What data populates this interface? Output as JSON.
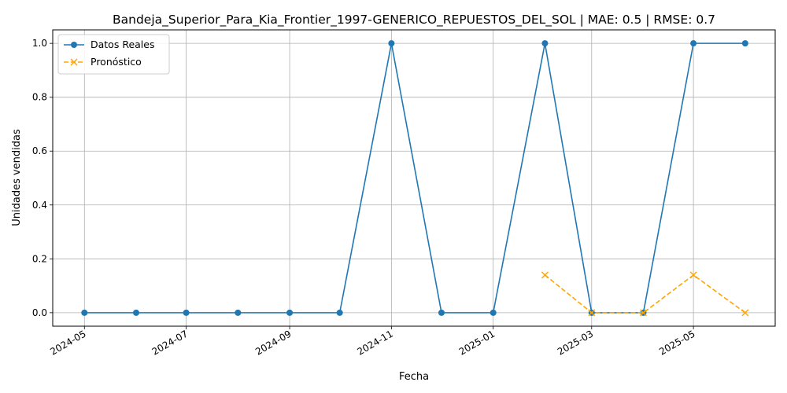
{
  "chart_data": {
    "type": "line",
    "title": "Bandeja_Superior_Para_Kia_Frontier_1997-GENERICO_REPUESTOS_DEL_SOL | MAE: 0.5 | RMSE: 0.7",
    "xlabel": "Fecha",
    "ylabel": "Unidades vendidas",
    "x_ticks": [
      "2024-05",
      "2024-07",
      "2024-09",
      "2024-11",
      "2025-01",
      "2025-03",
      "2025-05"
    ],
    "y_ticks": [
      "0.0",
      "0.2",
      "0.4",
      "0.6",
      "0.8",
      "1.0"
    ],
    "xlim": [
      "2024-04-12",
      "2025-06-19"
    ],
    "ylim": [
      -0.05,
      1.05
    ],
    "grid": true,
    "legend_position": "top-left",
    "series": [
      {
        "name": "Datos Reales",
        "color": "#1f77b4",
        "linestyle": "solid",
        "marker": "circle",
        "x": [
          "2024-05-01",
          "2024-06-01",
          "2024-07-01",
          "2024-08-01",
          "2024-09-01",
          "2024-10-01",
          "2024-11-01",
          "2024-12-01",
          "2025-01-01",
          "2025-02-01",
          "2025-03-01",
          "2025-04-01",
          "2025-05-01",
          "2025-06-01"
        ],
        "values": [
          0,
          0,
          0,
          0,
          0,
          0,
          1,
          0,
          0,
          1,
          0,
          0,
          1,
          1
        ]
      },
      {
        "name": "Pronóstico",
        "color": "#ffa500",
        "linestyle": "dashed",
        "marker": "x",
        "x": [
          "2025-02-01",
          "2025-03-01",
          "2025-04-01",
          "2025-05-01",
          "2025-06-01"
        ],
        "values": [
          0.14,
          0.0,
          0.0,
          0.14,
          0.0
        ]
      }
    ]
  }
}
